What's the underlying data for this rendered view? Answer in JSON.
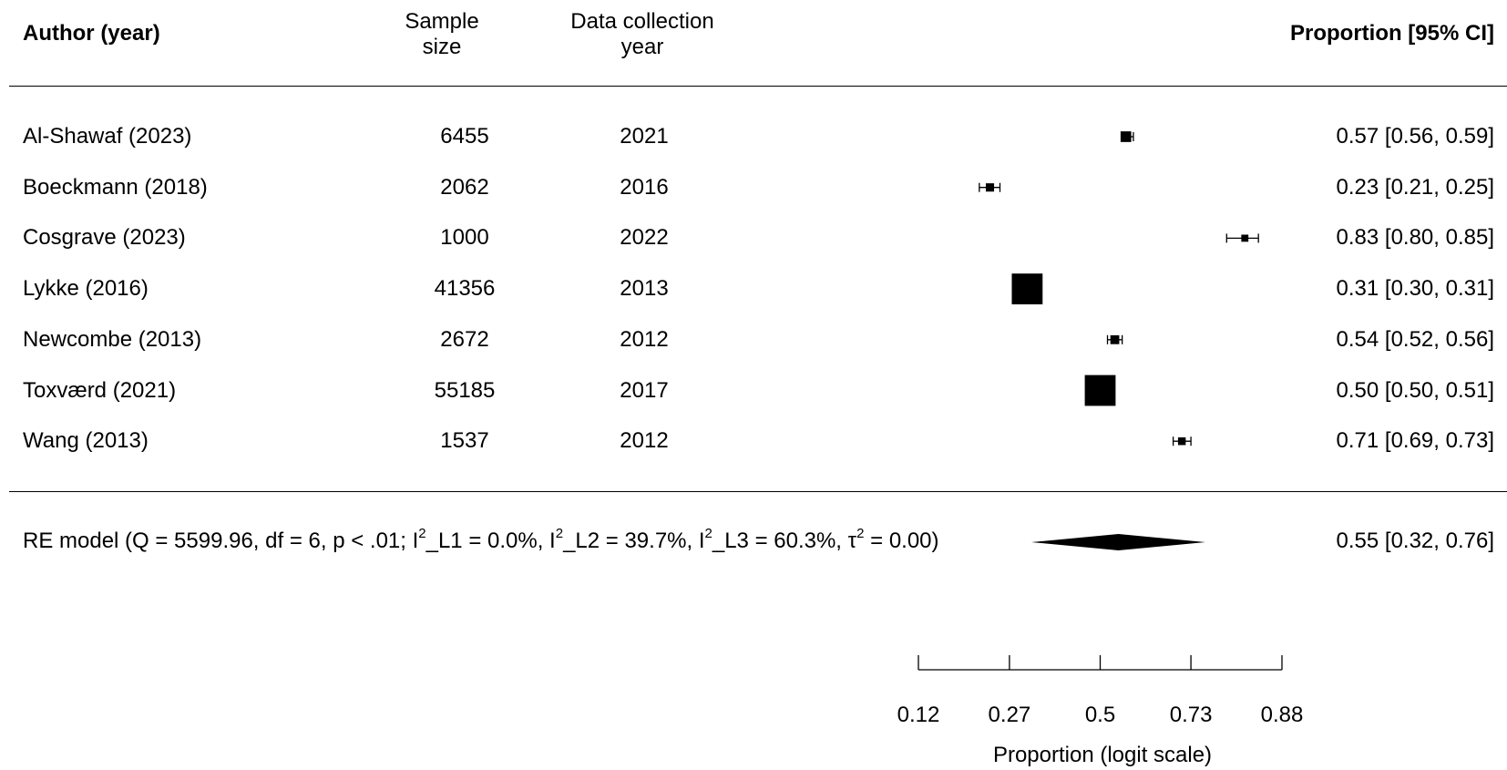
{
  "chart_data": {
    "type": "forest",
    "headers": {
      "author": "Author (year)",
      "sample_line1": "Sample",
      "sample_line2": "size",
      "collection_line1": "Data collection",
      "collection_line2": "year",
      "estimate": "Proportion [95% CI]"
    },
    "studies": [
      {
        "author": "Al-Shawaf (2023)",
        "n": "6455",
        "year": "2021",
        "est": 0.57,
        "lo": 0.56,
        "hi": 0.59,
        "label": "0.57 [0.56, 0.59]"
      },
      {
        "author": "Boeckmann (2018)",
        "n": "2062",
        "year": "2016",
        "est": 0.23,
        "lo": 0.21,
        "hi": 0.25,
        "label": "0.23 [0.21, 0.25]"
      },
      {
        "author": "Cosgrave (2023)",
        "n": "1000",
        "year": "2022",
        "est": 0.83,
        "lo": 0.8,
        "hi": 0.85,
        "label": "0.83 [0.80, 0.85]"
      },
      {
        "author": "Lykke (2016)",
        "n": "41356",
        "year": "2013",
        "est": 0.31,
        "lo": 0.3,
        "hi": 0.31,
        "label": "0.31 [0.30, 0.31]"
      },
      {
        "author": "Newcombe (2013)",
        "n": "2672",
        "year": "2012",
        "est": 0.54,
        "lo": 0.52,
        "hi": 0.56,
        "label": "0.54 [0.52, 0.56]"
      },
      {
        "author": "Toxværd (2021)",
        "n": "55185",
        "year": "2017",
        "est": 0.5,
        "lo": 0.5,
        "hi": 0.51,
        "label": "0.50 [0.50, 0.51]"
      },
      {
        "author": "Wang (2013)",
        "n": "1537",
        "year": "2012",
        "est": 0.71,
        "lo": 0.69,
        "hi": 0.73,
        "label": "0.71 [0.69, 0.73]"
      }
    ],
    "summary": {
      "text_pre": "RE model (Q = 5599.96, df = 6, p < .01; I",
      "sup1": "2",
      "text_mid1": "_L1 = 0.0%, I",
      "sup2": "2",
      "text_mid2": "_L2 = 39.7%, I",
      "sup3": "2",
      "text_mid3": "_L3 = 60.3%, τ",
      "sup4": "2",
      "text_post": " = 0.00)",
      "est": 0.55,
      "lo": 0.32,
      "hi": 0.76,
      "label": "0.55 [0.32, 0.76]"
    },
    "xaxis": {
      "scale": "logit",
      "ticks": [
        0.12,
        0.27,
        0.5,
        0.73,
        0.88
      ],
      "tick_labels": [
        "0.12",
        "0.27",
        "0.5",
        "0.73",
        "0.88"
      ],
      "label": "Proportion (logit scale)"
    },
    "marker_weights": [
      0.9,
      0.7,
      0.6,
      2.6,
      0.75,
      2.6,
      0.65
    ]
  }
}
